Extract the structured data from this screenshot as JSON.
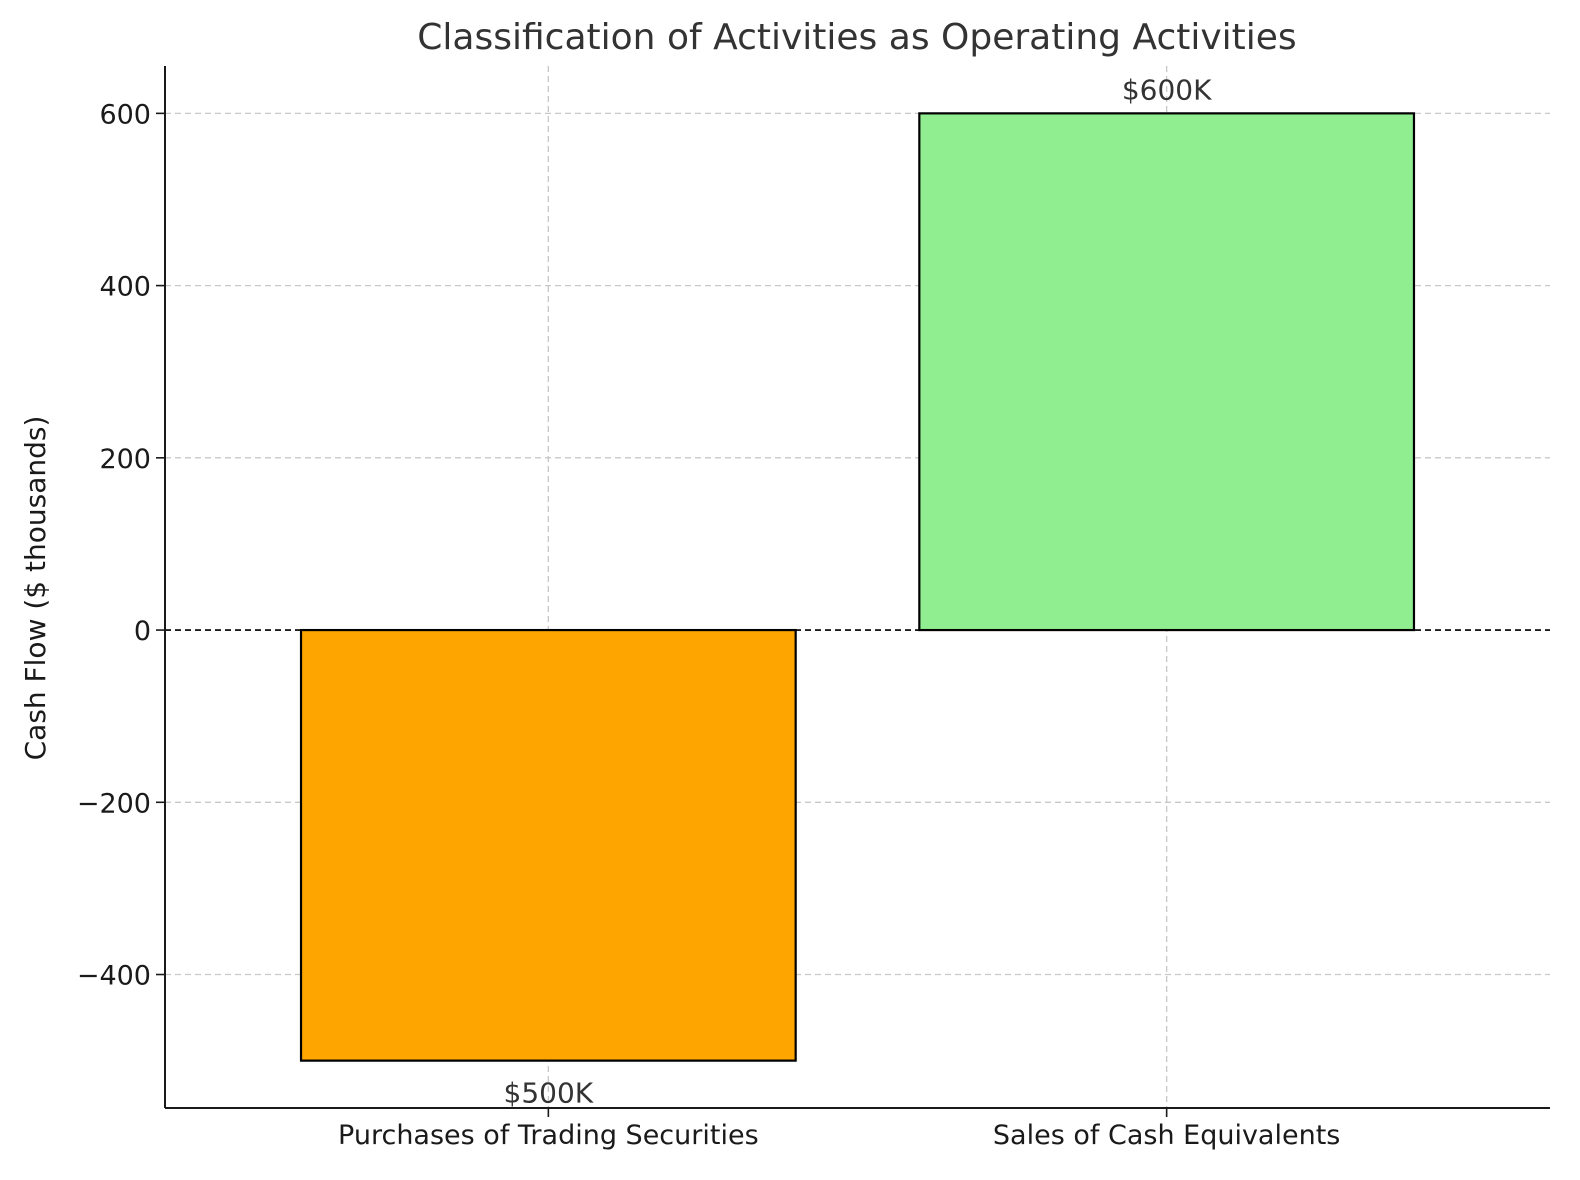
{
  "chart_data": {
    "type": "bar",
    "title": "Classification of Activities as Operating Activities",
    "xlabel": "",
    "ylabel": "Cash Flow ($ thousands)",
    "categories": [
      "Purchases of Trading Securities",
      "Sales of Cash Equivalents"
    ],
    "values": [
      -500,
      600
    ],
    "data_labels": [
      "$500K",
      "$600K"
    ],
    "bar_colors": [
      "#FFA500",
      "#90EE90"
    ],
    "bar_edge_color": "#000000",
    "ylim": [
      -555,
      655
    ],
    "yticks": [
      -400,
      -200,
      0,
      200,
      400,
      600
    ],
    "ytick_labels": [
      "−400",
      "−200",
      "0",
      "200",
      "400",
      "600"
    ],
    "zero_line": true,
    "grid": true,
    "legend": "none"
  }
}
